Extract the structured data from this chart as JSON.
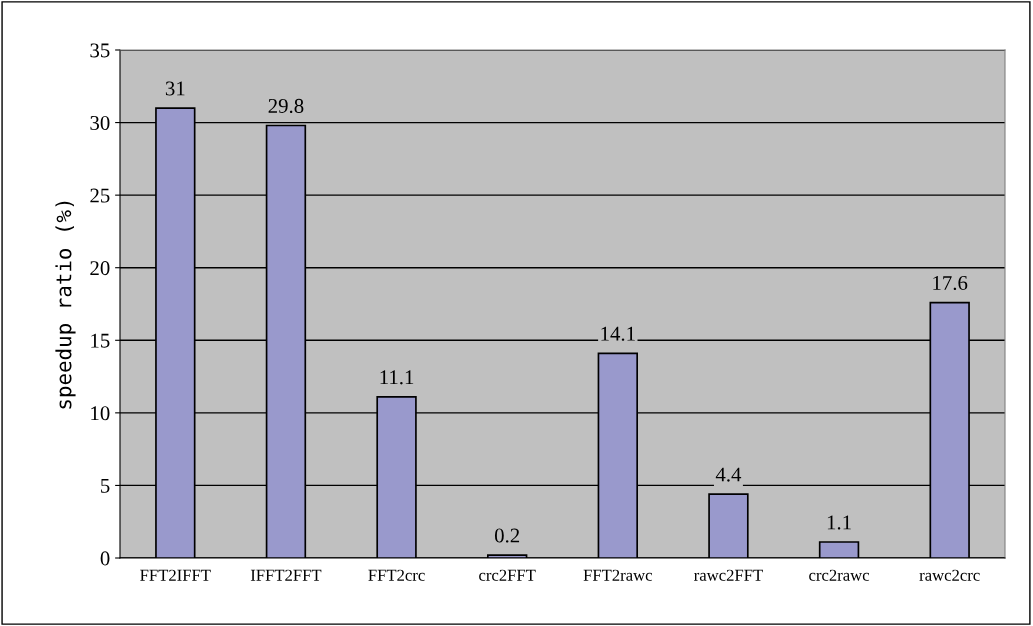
{
  "chart_data": {
    "type": "bar",
    "ylabel": "speedup ratio (%)",
    "categories": [
      "FFT2IFFT",
      "IFFT2FFT",
      "FFT2crc",
      "crc2FFT",
      "FFT2rawc",
      "rawc2FFT",
      "crc2rawc",
      "rawc2crc"
    ],
    "values": [
      31,
      29.8,
      11.1,
      0.2,
      14.1,
      4.4,
      1.1,
      17.6
    ],
    "color": "#9999cc",
    "ylim": [
      0,
      35
    ],
    "yticks": [
      0,
      5,
      10,
      15,
      20,
      25,
      30,
      35
    ],
    "grid": "y",
    "data_labels": true
  }
}
